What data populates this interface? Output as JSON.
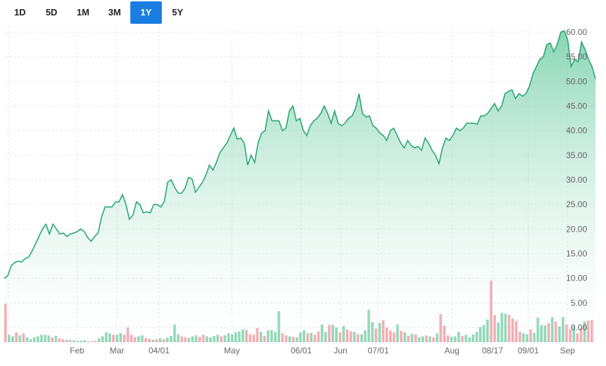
{
  "range_buttons": [
    {
      "label": "1D",
      "active": false
    },
    {
      "label": "5D",
      "active": false
    },
    {
      "label": "1M",
      "active": false
    },
    {
      "label": "3M",
      "active": false
    },
    {
      "label": "1Y",
      "active": true
    },
    {
      "label": "5Y",
      "active": false
    }
  ],
  "colors": {
    "line": "#2aa874",
    "area_top": "#5fc79b",
    "area_bottom": "#ffffff",
    "volume_up": "#7fd1ad",
    "volume_down": "#f0a0a8",
    "active_button": "#1a7de0",
    "grid": "#e6e6e6"
  },
  "chart_data": {
    "type": "area",
    "title": "",
    "xlabel": "",
    "ylabel": "",
    "ylim": [
      0,
      60
    ],
    "y_ticks": [
      "0.00",
      "5.00",
      "10.00",
      "15.00",
      "20.00",
      "25.00",
      "30.00",
      "35.00",
      "40.00",
      "45.00",
      "50.00",
      "55.00",
      "60.00"
    ],
    "x_tick_labels": [
      "Feb",
      "Mar",
      "04/01",
      "May",
      "06/01",
      "Jun",
      "07/01",
      "Aug",
      "08/17",
      "09/01",
      "Sep"
    ],
    "grid": true,
    "series": [
      {
        "values": [
          10.0,
          10.5,
          12.5,
          13.2,
          13.5,
          13.3,
          14.0,
          14.3,
          15.5,
          17.0,
          18.5,
          20.0,
          21.0,
          19.0,
          21.0,
          20.0,
          19.0,
          19.2,
          18.5,
          19.0,
          19.2,
          19.5,
          20.0,
          19.5,
          18.3,
          17.5,
          18.5,
          19.2,
          22.5,
          24.5,
          24.5,
          24.5,
          25.5,
          25.5,
          27.0,
          25.0,
          22.0,
          22.8,
          25.5,
          25.0,
          23.3,
          23.5,
          23.3,
          25.0,
          25.0,
          24.5,
          25.5,
          29.5,
          30.0,
          28.5,
          27.3,
          27.3,
          28.3,
          30.5,
          30.2,
          27.5,
          28.5,
          29.5,
          31.0,
          33.0,
          32.0,
          33.5,
          35.5,
          36.5,
          37.5,
          39.0,
          40.5,
          38.3,
          38.5,
          37.5,
          33.0,
          35.0,
          33.5,
          37.5,
          39.5,
          40.0,
          44.0,
          42.0,
          42.0,
          42.0,
          40.0,
          40.5,
          44.0,
          45.0,
          42.0,
          42.5,
          40.0,
          39.0,
          41.0,
          42.0,
          42.5,
          43.5,
          45.0,
          43.5,
          41.5,
          44.0,
          41.5,
          41.0,
          41.5,
          42.5,
          43.0,
          44.5,
          47.5,
          43.5,
          42.8,
          43.0,
          41.0,
          40.5,
          39.5,
          39.0,
          38.0,
          40.0,
          40.5,
          39.0,
          37.5,
          36.5,
          38.0,
          37.0,
          36.5,
          36.8,
          36.0,
          38.5,
          37.5,
          36.0,
          35.0,
          33.3,
          36.5,
          38.5,
          38.0,
          39.0,
          40.5,
          40.0,
          40.5,
          41.5,
          41.5,
          41.5,
          41.3,
          43.0,
          43.0,
          43.5,
          44.5,
          45.5,
          44.0,
          45.0,
          47.5,
          48.0,
          48.3,
          46.5,
          47.5,
          47.0,
          47.5,
          49.0,
          51.5,
          53.0,
          54.5,
          55.0,
          57.5,
          57.8,
          56.0,
          57.5,
          60.0,
          60.3,
          58.5,
          53.0,
          54.5,
          54.0,
          58.0,
          56.5,
          54.5,
          53.0,
          50.5
        ]
      }
    ],
    "volume": [
      {
        "v": 7.8,
        "up": false
      },
      {
        "v": 1.5,
        "up": true
      },
      {
        "v": 1.2,
        "up": true
      },
      {
        "v": 2.0,
        "up": false
      },
      {
        "v": 1.4,
        "up": true
      },
      {
        "v": 1.8,
        "up": false
      },
      {
        "v": 1.0,
        "up": true
      },
      {
        "v": 0.6,
        "up": true
      },
      {
        "v": 1.0,
        "up": true
      },
      {
        "v": 1.2,
        "up": true
      },
      {
        "v": 1.5,
        "up": true
      },
      {
        "v": 1.5,
        "up": true
      },
      {
        "v": 1.4,
        "up": true
      },
      {
        "v": 1.0,
        "up": false
      },
      {
        "v": 1.3,
        "up": true
      },
      {
        "v": 0.8,
        "up": false
      },
      {
        "v": 0.6,
        "up": false
      },
      {
        "v": 0.5,
        "up": true
      },
      {
        "v": 0.5,
        "up": false
      },
      {
        "v": 0.4,
        "up": true
      },
      {
        "v": 0.3,
        "up": true
      },
      {
        "v": 0.3,
        "up": true
      },
      {
        "v": 0.4,
        "up": true
      },
      {
        "v": 0.2,
        "up": false
      },
      {
        "v": 0.2,
        "up": false
      },
      {
        "v": 0.3,
        "up": false
      },
      {
        "v": 0.8,
        "up": true
      },
      {
        "v": 1.2,
        "up": true
      },
      {
        "v": 2.0,
        "up": true
      },
      {
        "v": 1.8,
        "up": true
      },
      {
        "v": 1.5,
        "up": false
      },
      {
        "v": 1.5,
        "up": true
      },
      {
        "v": 1.8,
        "up": true
      },
      {
        "v": 1.5,
        "up": false
      },
      {
        "v": 3.0,
        "up": false
      },
      {
        "v": 1.5,
        "up": false
      },
      {
        "v": 1.0,
        "up": false
      },
      {
        "v": 1.2,
        "up": true
      },
      {
        "v": 1.4,
        "up": true
      },
      {
        "v": 0.8,
        "up": false
      },
      {
        "v": 0.7,
        "up": false
      },
      {
        "v": 0.5,
        "up": true
      },
      {
        "v": 0.6,
        "up": false
      },
      {
        "v": 0.8,
        "up": true
      },
      {
        "v": 0.6,
        "up": false
      },
      {
        "v": 0.9,
        "up": true
      },
      {
        "v": 1.3,
        "up": true
      },
      {
        "v": 3.6,
        "up": true
      },
      {
        "v": 1.6,
        "up": true
      },
      {
        "v": 1.2,
        "up": false
      },
      {
        "v": 1.0,
        "up": false
      },
      {
        "v": 0.9,
        "up": true
      },
      {
        "v": 1.2,
        "up": true
      },
      {
        "v": 1.4,
        "up": true
      },
      {
        "v": 1.1,
        "up": false
      },
      {
        "v": 1.5,
        "up": false
      },
      {
        "v": 1.2,
        "up": true
      },
      {
        "v": 1.0,
        "up": true
      },
      {
        "v": 1.3,
        "up": true
      },
      {
        "v": 1.5,
        "up": true
      },
      {
        "v": 1.2,
        "up": false
      },
      {
        "v": 1.4,
        "up": true
      },
      {
        "v": 1.8,
        "up": true
      },
      {
        "v": 1.6,
        "up": true
      },
      {
        "v": 2.0,
        "up": true
      },
      {
        "v": 2.2,
        "up": true
      },
      {
        "v": 2.6,
        "up": true
      },
      {
        "v": 2.5,
        "up": false
      },
      {
        "v": 1.6,
        "up": false
      },
      {
        "v": 1.5,
        "up": false
      },
      {
        "v": 2.9,
        "up": false
      },
      {
        "v": 2.1,
        "up": true
      },
      {
        "v": 1.3,
        "up": false
      },
      {
        "v": 2.4,
        "up": true
      },
      {
        "v": 2.5,
        "up": true
      },
      {
        "v": 2.1,
        "up": true
      },
      {
        "v": 6.3,
        "up": true
      },
      {
        "v": 1.8,
        "up": false
      },
      {
        "v": 1.4,
        "up": false
      },
      {
        "v": 1.2,
        "up": true
      },
      {
        "v": 1.1,
        "up": false
      },
      {
        "v": 1.0,
        "up": true
      },
      {
        "v": 2.0,
        "up": true
      },
      {
        "v": 2.4,
        "up": true
      },
      {
        "v": 1.8,
        "up": false
      },
      {
        "v": 1.9,
        "up": true
      },
      {
        "v": 1.5,
        "up": false
      },
      {
        "v": 2.2,
        "up": false
      },
      {
        "v": 3.6,
        "up": true
      },
      {
        "v": 2.1,
        "up": true
      },
      {
        "v": 3.5,
        "up": false
      },
      {
        "v": 3.5,
        "up": true
      },
      {
        "v": 3.0,
        "up": true
      },
      {
        "v": 2.0,
        "up": false
      },
      {
        "v": 3.3,
        "up": true
      },
      {
        "v": 2.6,
        "up": false
      },
      {
        "v": 2.2,
        "up": false
      },
      {
        "v": 2.1,
        "up": true
      },
      {
        "v": 1.6,
        "up": false
      },
      {
        "v": 1.6,
        "up": true
      },
      {
        "v": 2.4,
        "up": true
      },
      {
        "v": 6.6,
        "up": true
      },
      {
        "v": 4.1,
        "up": true
      },
      {
        "v": 2.8,
        "up": false
      },
      {
        "v": 3.9,
        "up": true
      },
      {
        "v": 4.5,
        "up": false
      },
      {
        "v": 3.0,
        "up": false
      },
      {
        "v": 2.4,
        "up": false
      },
      {
        "v": 2.0,
        "up": false
      },
      {
        "v": 3.6,
        "up": true
      },
      {
        "v": 2.3,
        "up": false
      },
      {
        "v": 2.0,
        "up": true
      },
      {
        "v": 1.3,
        "up": false
      },
      {
        "v": 1.7,
        "up": true
      },
      {
        "v": 1.6,
        "up": false
      },
      {
        "v": 1.0,
        "up": true
      },
      {
        "v": 1.2,
        "up": true
      },
      {
        "v": 1.4,
        "up": false
      },
      {
        "v": 1.2,
        "up": true
      },
      {
        "v": 1.0,
        "up": false
      },
      {
        "v": 1.8,
        "up": true
      },
      {
        "v": 5.7,
        "up": false
      },
      {
        "v": 3.4,
        "up": false
      },
      {
        "v": 1.4,
        "up": false
      },
      {
        "v": 1.1,
        "up": true
      },
      {
        "v": 1.2,
        "up": true
      },
      {
        "v": 2.1,
        "up": true
      },
      {
        "v": 1.3,
        "up": false
      },
      {
        "v": 1.5,
        "up": true
      },
      {
        "v": 1.0,
        "up": true
      },
      {
        "v": 1.6,
        "up": true
      },
      {
        "v": 2.1,
        "up": true
      },
      {
        "v": 3.1,
        "up": true
      },
      {
        "v": 3.5,
        "up": true
      },
      {
        "v": 4.6,
        "up": true
      },
      {
        "v": 12.5,
        "up": false
      },
      {
        "v": 5.5,
        "up": false
      },
      {
        "v": 4.0,
        "up": true
      },
      {
        "v": 6.0,
        "up": true
      },
      {
        "v": 5.8,
        "up": true
      },
      {
        "v": 5.6,
        "up": false
      },
      {
        "v": 4.8,
        "up": false
      },
      {
        "v": 4.3,
        "up": false
      },
      {
        "v": 2.1,
        "up": false
      },
      {
        "v": 1.8,
        "up": true
      },
      {
        "v": 1.6,
        "up": true
      },
      {
        "v": 2.6,
        "up": false
      },
      {
        "v": 1.9,
        "up": true
      },
      {
        "v": 5.0,
        "up": true
      },
      {
        "v": 3.5,
        "up": true
      },
      {
        "v": 3.4,
        "up": true
      },
      {
        "v": 3.9,
        "up": false
      },
      {
        "v": 5.1,
        "up": true
      },
      {
        "v": 4.2,
        "up": false
      },
      {
        "v": 3.2,
        "up": true
      },
      {
        "v": 5.1,
        "up": true
      },
      {
        "v": 3.6,
        "up": false
      },
      {
        "v": 2.6,
        "up": false
      },
      {
        "v": 3.3,
        "up": true
      },
      {
        "v": 1.8,
        "up": false
      },
      {
        "v": 3.0,
        "up": false
      },
      {
        "v": 4.2,
        "up": true
      },
      {
        "v": 4.4,
        "up": false
      },
      {
        "v": 4.5,
        "up": false
      }
    ]
  }
}
